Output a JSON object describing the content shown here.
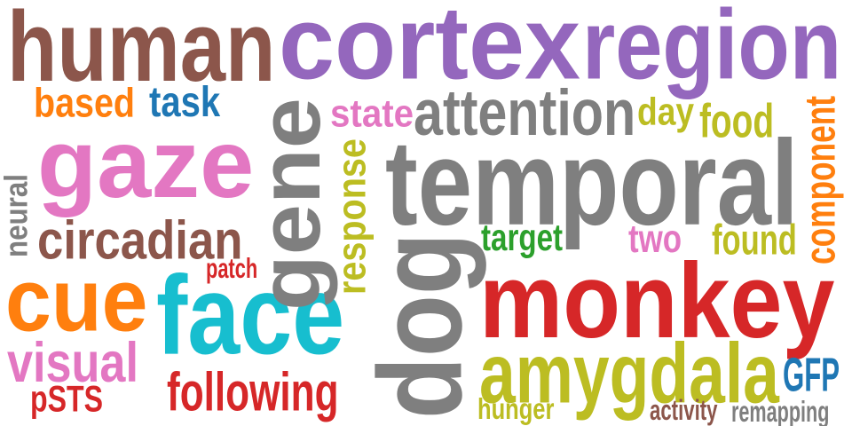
{
  "words": {
    "human": {
      "text": "human",
      "color": "#8c564b"
    },
    "cortex": {
      "text": "cortex",
      "color": "#9467bd"
    },
    "region": {
      "text": "region",
      "color": "#9467bd"
    },
    "based": {
      "text": "based",
      "color": "#ff7f0e"
    },
    "task": {
      "text": "task",
      "color": "#1f77b4"
    },
    "gaze": {
      "text": "gaze",
      "color": "#e377c2"
    },
    "gene": {
      "text": "gene",
      "color": "#7f7f7f"
    },
    "state": {
      "text": "state",
      "color": "#e377c2"
    },
    "attention": {
      "text": "attention",
      "color": "#7f7f7f"
    },
    "day": {
      "text": "day",
      "color": "#bcbd22"
    },
    "food": {
      "text": "food",
      "color": "#bcbd22"
    },
    "component": {
      "text": "component",
      "color": "#ff7f0e"
    },
    "neural": {
      "text": "neural",
      "color": "#7f7f7f"
    },
    "circadian": {
      "text": "circadian",
      "color": "#8c564b"
    },
    "response": {
      "text": "response",
      "color": "#bcbd22"
    },
    "temporal": {
      "text": "temporal",
      "color": "#7f7f7f"
    },
    "target": {
      "text": "target",
      "color": "#2ca02c"
    },
    "two": {
      "text": "two",
      "color": "#e377c2"
    },
    "found": {
      "text": "found",
      "color": "#bcbd22"
    },
    "cue": {
      "text": "cue",
      "color": "#ff7f0e"
    },
    "patch": {
      "text": "patch",
      "color": "#d62728"
    },
    "face": {
      "text": "face",
      "color": "#17becf"
    },
    "dog": {
      "text": "dog",
      "color": "#7f7f7f"
    },
    "monkey": {
      "text": "monkey",
      "color": "#d62728"
    },
    "visual": {
      "text": "visual",
      "color": "#e377c2"
    },
    "amygdala": {
      "text": "amygdala",
      "color": "#bcbd22"
    },
    "GFP": {
      "text": "GFP",
      "color": "#1f77b4"
    },
    "pSTS": {
      "text": "pSTS",
      "color": "#d62728"
    },
    "following": {
      "text": "following",
      "color": "#d62728"
    },
    "hunger": {
      "text": "hunger",
      "color": "#bcbd22"
    },
    "activity": {
      "text": "activity",
      "color": "#8c564b"
    },
    "remapping": {
      "text": "remapping",
      "color": "#7f7f7f"
    }
  }
}
